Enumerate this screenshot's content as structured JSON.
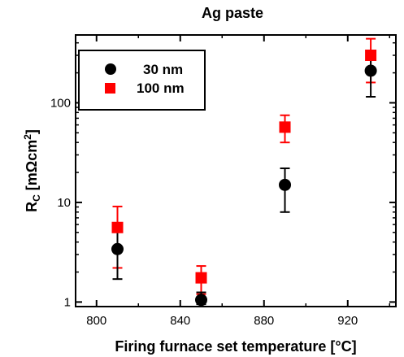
{
  "chart_data": {
    "type": "scatter",
    "title": "Ag paste",
    "xlabel": "Firing furnace set temperature [°C]",
    "ylabel": {
      "main": "R",
      "sub": "C",
      "rest": " [mΩcm",
      "sup": "2",
      "end": "]"
    },
    "xlim": [
      790,
      943
    ],
    "ylim": [
      0.9,
      480
    ],
    "yscale": "log",
    "xticks": [
      800,
      840,
      880,
      920
    ],
    "yticks": [
      1,
      10,
      100
    ],
    "xtick_labels": [
      "800",
      "840",
      "880",
      "920"
    ],
    "ytick_labels": [
      "1",
      "10",
      "100"
    ],
    "legend_position": "top-left",
    "series": [
      {
        "name": "30 nm",
        "marker": "circle",
        "color": "#000000",
        "points": [
          {
            "x": 810,
            "y": 3.4,
            "lo": 1.7,
            "hi": 5.5
          },
          {
            "x": 850,
            "y": 1.05,
            "lo": 0.95,
            "hi": 1.25
          },
          {
            "x": 890,
            "y": 15,
            "lo": 8,
            "hi": 22
          },
          {
            "x": 931,
            "y": 210,
            "lo": 115,
            "hi": 290
          }
        ]
      },
      {
        "name": "100 nm",
        "marker": "square",
        "color": "#ff0000",
        "points": [
          {
            "x": 810,
            "y": 5.6,
            "lo": 2.2,
            "hi": 9.1
          },
          {
            "x": 850,
            "y": 1.75,
            "lo": 1.2,
            "hi": 2.3
          },
          {
            "x": 890,
            "y": 57,
            "lo": 40,
            "hi": 75
          },
          {
            "x": 931,
            "y": 300,
            "lo": 160,
            "hi": 440
          }
        ]
      }
    ]
  }
}
